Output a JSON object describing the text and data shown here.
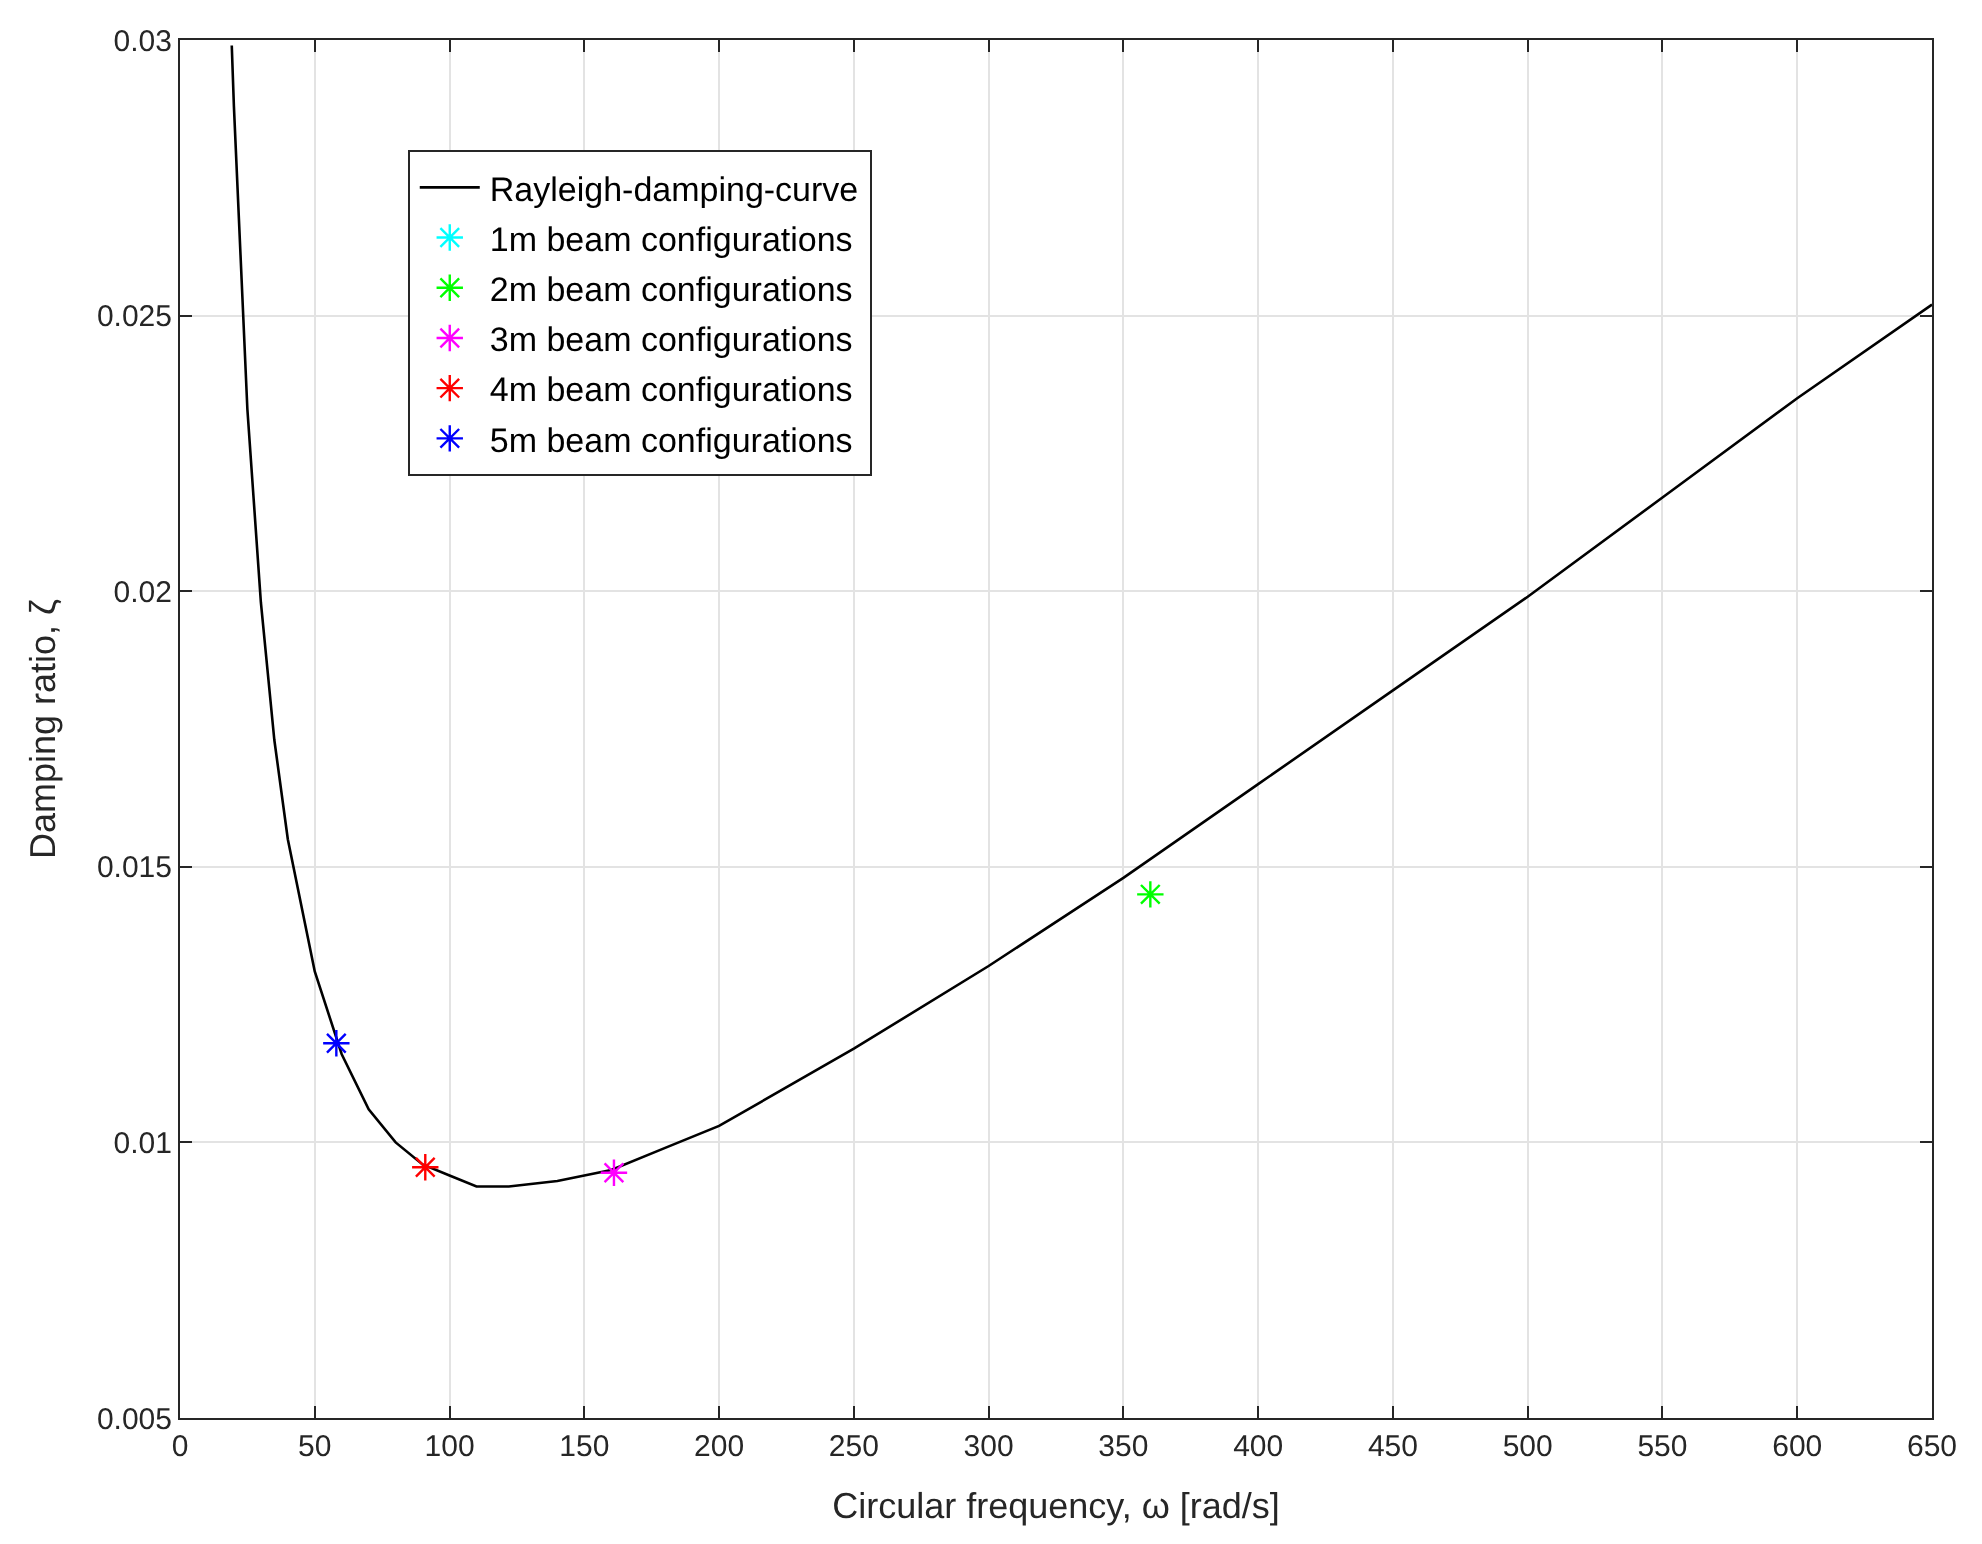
{
  "chart_data": {
    "type": "scatter",
    "xlabel": "Circular frequency, ω [rad/s]",
    "ylabel": "Damping ratio, ζ",
    "xlim": [
      0,
      650
    ],
    "xticks": [
      0,
      50,
      100,
      150,
      200,
      250,
      300,
      350,
      400,
      450,
      500,
      550,
      600,
      650
    ],
    "ylim": [
      0.005,
      0.03
    ],
    "yticks": [
      0.005,
      0.01,
      0.015,
      0.02,
      0.025,
      0.03
    ],
    "grid": true,
    "legend": "top left",
    "marker": "cross",
    "series": [
      {
        "name": "Rayleigh-damping-curve",
        "type": "line",
        "color": "#000000",
        "marker": "none",
        "line_style": "solid",
        "x": [
          19.2,
          20,
          25,
          30,
          35,
          40,
          50,
          60,
          70,
          80,
          90,
          100,
          110,
          122,
          140,
          160,
          180,
          200,
          250,
          300,
          350,
          400,
          450,
          500,
          550,
          600,
          650
        ],
        "values": [
          0.0299,
          0.0288,
          0.0233,
          0.0198,
          0.0173,
          0.0155,
          0.0131,
          0.0116,
          0.0106,
          0.01,
          0.0096,
          0.0094,
          0.0092,
          0.0092,
          0.0093,
          0.0095,
          0.0099,
          0.0103,
          0.0117,
          0.0132,
          0.0148,
          0.0165,
          0.0182,
          0.0199,
          0.0217,
          0.0235,
          0.0252
        ]
      },
      {
        "name": "1m beam configurations",
        "color": "#00ffff",
        "x": [
          null
        ],
        "values": [
          null
        ]
      },
      {
        "name": "2m beam configurations",
        "color": "#00ff00",
        "x": [
          360
        ],
        "values": [
          0.0145
        ]
      },
      {
        "name": "3m beam configurations",
        "color": "#ff00ff",
        "x": [
          161
        ],
        "values": [
          0.00945
        ]
      },
      {
        "name": "4m beam configurations",
        "color": "#ff0000",
        "x": [
          91
        ],
        "values": [
          0.00955
        ]
      },
      {
        "name": "5m beam configurations",
        "color": "#0000ff",
        "x": [
          58
        ],
        "values": [
          0.0118
        ]
      }
    ]
  }
}
